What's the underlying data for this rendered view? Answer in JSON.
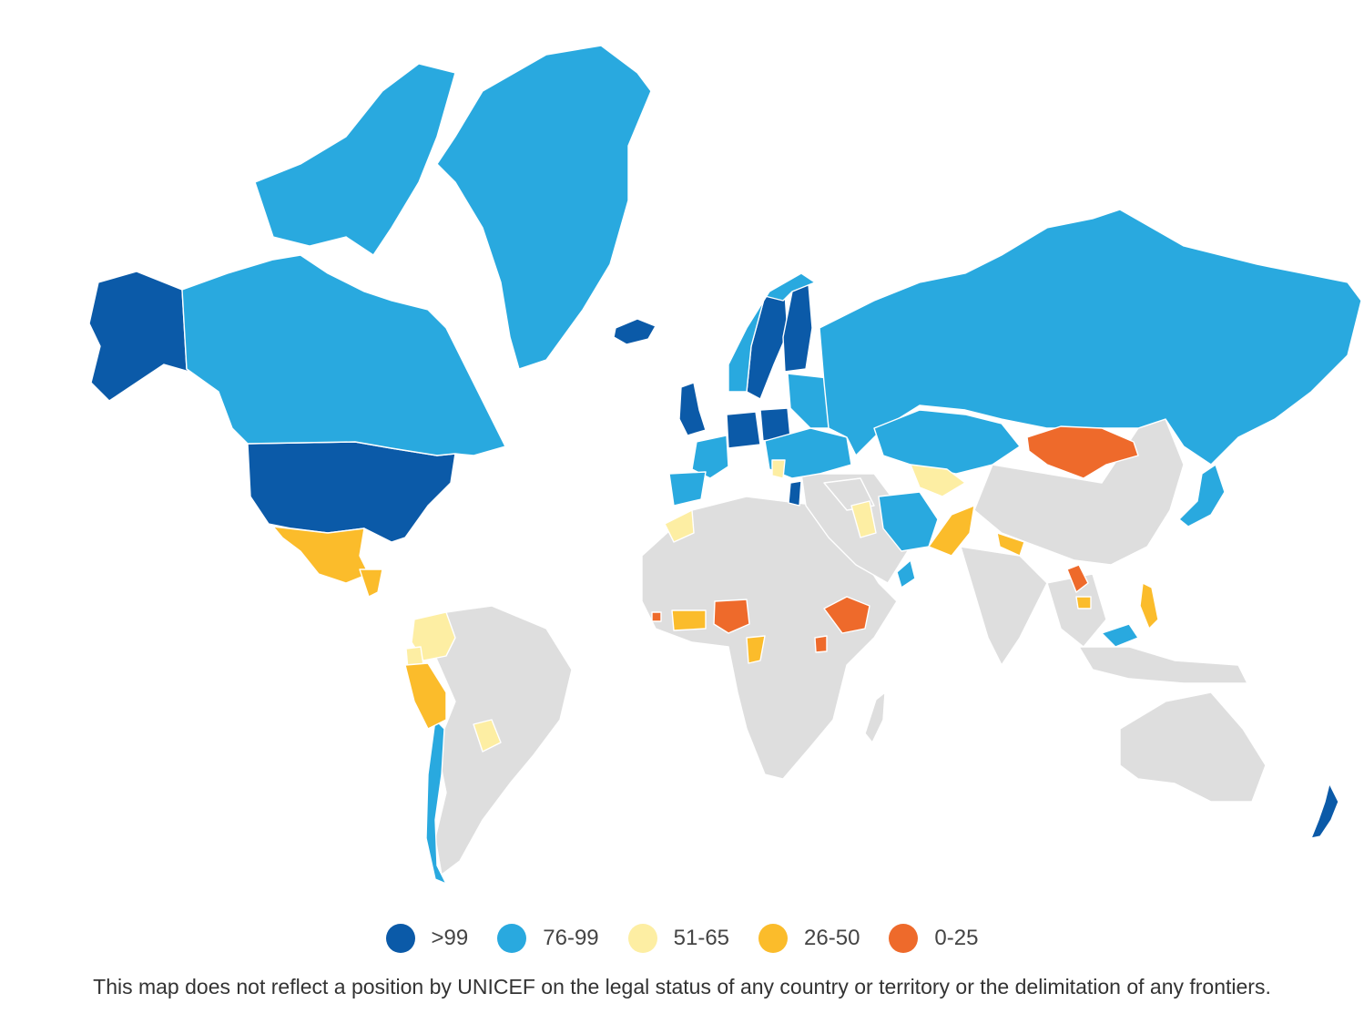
{
  "legend": {
    "items": [
      {
        "label": ">99",
        "color": "#0b5aa8"
      },
      {
        "label": "76-99",
        "color": "#29a9df"
      },
      {
        "label": "51-65",
        "color": "#fdeea3"
      },
      {
        "label": "26-50",
        "color": "#fbbc2b"
      },
      {
        "label": "0-25",
        "color": "#ee6a2b"
      }
    ]
  },
  "no_data_color": "#dedede",
  "disclaimer": "This map does not reflect a position by UNICEF on the legal status of any country or territory or the delimitation of any frontiers.",
  "regions": [
    {
      "name": "Greenland",
      "cls": 1
    },
    {
      "name": "Canada",
      "cls": 1
    },
    {
      "name": "Alaska (USA)",
      "cls": 0
    },
    {
      "name": "United States",
      "cls": 0
    },
    {
      "name": "Mexico",
      "cls": 3
    },
    {
      "name": "Central America",
      "cls": 3
    },
    {
      "name": "Colombia",
      "cls": 2
    },
    {
      "name": "Ecuador",
      "cls": 2
    },
    {
      "name": "Peru",
      "cls": 3
    },
    {
      "name": "Paraguay",
      "cls": 2
    },
    {
      "name": "Chile",
      "cls": 1
    },
    {
      "name": "Iceland",
      "cls": 0
    },
    {
      "name": "United Kingdom",
      "cls": 0
    },
    {
      "name": "Norway",
      "cls": 1
    },
    {
      "name": "Sweden",
      "cls": 0
    },
    {
      "name": "Finland",
      "cls": 0
    },
    {
      "name": "Germany",
      "cls": 0
    },
    {
      "name": "Poland",
      "cls": 0
    },
    {
      "name": "France",
      "cls": 1
    },
    {
      "name": "Iberia",
      "cls": 1
    },
    {
      "name": "Eastern Europe",
      "cls": 1
    },
    {
      "name": "Russia",
      "cls": 1
    },
    {
      "name": "Kazakhstan",
      "cls": 1
    },
    {
      "name": "Uzbekistan",
      "cls": 2
    },
    {
      "name": "Mongolia",
      "cls": 4
    },
    {
      "name": "Iran",
      "cls": 1
    },
    {
      "name": "Pakistan",
      "cls": 3
    },
    {
      "name": "Morocco",
      "cls": 2
    },
    {
      "name": "Iraq",
      "cls": 2
    },
    {
      "name": "Nigeria",
      "cls": 4
    },
    {
      "name": "Ghana",
      "cls": 3
    },
    {
      "name": "Ethiopia",
      "cls": 4
    },
    {
      "name": "Congo",
      "cls": 3
    },
    {
      "name": "Uganda",
      "cls": 4
    },
    {
      "name": "Laos",
      "cls": 4
    },
    {
      "name": "Philippines",
      "cls": 3
    },
    {
      "name": "Japan",
      "cls": 1
    },
    {
      "name": "New Zealand",
      "cls": 0
    }
  ]
}
